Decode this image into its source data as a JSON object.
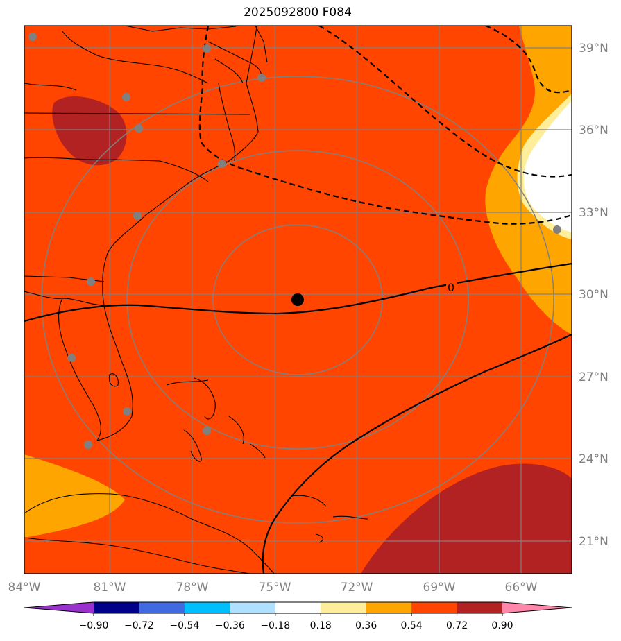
{
  "title": "2025092800 F084",
  "map": {
    "lat_labels": [
      "39°N",
      "36°N",
      "33°N",
      "30°N",
      "27°N",
      "24°N",
      "21°N"
    ],
    "lon_labels": [
      "84°W",
      "81°W",
      "78°W",
      "75°W",
      "72°W",
      "69°W",
      "66°W"
    ],
    "contour_label_zero": "0",
    "colors": {
      "background": "#ff4500",
      "dark_red": "#b22222",
      "orange": "#ffa500",
      "light_yellow": "#ffee99",
      "white": "#ffffff",
      "grid": "#808080"
    }
  },
  "colorbar": {
    "ticks": [
      "−0.90",
      "−0.72",
      "−0.54",
      "−0.36",
      "−0.18",
      "0.18",
      "0.36",
      "0.54",
      "0.72",
      "0.90"
    ],
    "colors": [
      "#9932cc",
      "#00008b",
      "#4169e1",
      "#00bfff",
      "#b0e0ff",
      "#ffffff",
      "#ffee99",
      "#ffa500",
      "#ff4500",
      "#b22222",
      "#ff88aa"
    ]
  }
}
